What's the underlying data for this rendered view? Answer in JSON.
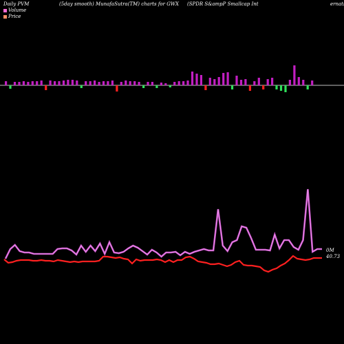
{
  "header": {
    "left": "Daily PVM",
    "center": "(5day smooth) MunafaSutra(TM) charts for GWX",
    "right": "(SPDR S&ampP Smallcap Int",
    "right_clip": "ernatio"
  },
  "legend": [
    {
      "label": "Volume",
      "color": "#ff6ad5"
    },
    {
      "label": "Price",
      "color": "#ff8c66"
    }
  ],
  "end_labels": {
    "upper": "0M",
    "lower": "40.73"
  },
  "colors": {
    "up": "#c21fc2",
    "down": "#2fe05a",
    "red": "#ff2020",
    "volume_line": "#c94fc9"
  },
  "chart_data": {
    "type": "bar",
    "bars": [
      {
        "v": 6,
        "d": "up"
      },
      {
        "v": -5,
        "d": "down"
      },
      {
        "v": 5,
        "d": "up"
      },
      {
        "v": 5,
        "d": "up"
      },
      {
        "v": 6,
        "d": "up"
      },
      {
        "v": 5,
        "d": "up"
      },
      {
        "v": 6,
        "d": "up"
      },
      {
        "v": 6,
        "d": "up"
      },
      {
        "v": 7,
        "d": "up"
      },
      {
        "v": -7,
        "d": "red"
      },
      {
        "v": 7,
        "d": "up"
      },
      {
        "v": 6,
        "d": "up"
      },
      {
        "v": 6,
        "d": "up"
      },
      {
        "v": 7,
        "d": "up"
      },
      {
        "v": 8,
        "d": "up"
      },
      {
        "v": 8,
        "d": "up"
      },
      {
        "v": 7,
        "d": "up"
      },
      {
        "v": -4,
        "d": "down"
      },
      {
        "v": 6,
        "d": "up"
      },
      {
        "v": 6,
        "d": "up"
      },
      {
        "v": 7,
        "d": "up"
      },
      {
        "v": 5,
        "d": "up"
      },
      {
        "v": 6,
        "d": "up"
      },
      {
        "v": 6,
        "d": "up"
      },
      {
        "v": 7,
        "d": "up"
      },
      {
        "v": -9,
        "d": "red"
      },
      {
        "v": 5,
        "d": "up"
      },
      {
        "v": 7,
        "d": "up"
      },
      {
        "v": 6,
        "d": "up"
      },
      {
        "v": 6,
        "d": "up"
      },
      {
        "v": 5,
        "d": "up"
      },
      {
        "v": -4,
        "d": "down"
      },
      {
        "v": 5,
        "d": "up"
      },
      {
        "v": 5,
        "d": "up"
      },
      {
        "v": -4,
        "d": "down"
      },
      {
        "v": 4,
        "d": "up"
      },
      {
        "v": 3,
        "d": "up"
      },
      {
        "v": -3,
        "d": "down"
      },
      {
        "v": 5,
        "d": "up"
      },
      {
        "v": 6,
        "d": "up"
      },
      {
        "v": 6,
        "d": "up"
      },
      {
        "v": 7,
        "d": "up"
      },
      {
        "v": 20,
        "d": "up"
      },
      {
        "v": 17,
        "d": "up"
      },
      {
        "v": 15,
        "d": "up"
      },
      {
        "v": -7,
        "d": "red"
      },
      {
        "v": 11,
        "d": "up"
      },
      {
        "v": 9,
        "d": "up"
      },
      {
        "v": 12,
        "d": "up"
      },
      {
        "v": 18,
        "d": "up"
      },
      {
        "v": 19,
        "d": "up"
      },
      {
        "v": -6,
        "d": "down"
      },
      {
        "v": 14,
        "d": "up"
      },
      {
        "v": 8,
        "d": "up"
      },
      {
        "v": 9,
        "d": "up"
      },
      {
        "v": -8,
        "d": "red"
      },
      {
        "v": 6,
        "d": "up"
      },
      {
        "v": 11,
        "d": "up"
      },
      {
        "v": -6,
        "d": "red"
      },
      {
        "v": 9,
        "d": "up"
      },
      {
        "v": 11,
        "d": "up"
      },
      {
        "v": -6,
        "d": "down"
      },
      {
        "v": -8,
        "d": "down"
      },
      {
        "v": -10,
        "d": "down"
      },
      {
        "v": 8,
        "d": "up"
      },
      {
        "v": 29,
        "d": "up"
      },
      {
        "v": 12,
        "d": "up"
      },
      {
        "v": 8,
        "d": "up"
      },
      {
        "v": -6,
        "d": "down"
      },
      {
        "v": 7,
        "d": "up"
      }
    ],
    "volume_line": [
      376,
      362,
      356,
      365,
      367,
      367,
      369,
      369,
      369,
      369,
      369,
      362,
      361,
      361,
      364,
      370,
      357,
      366,
      357,
      365,
      354,
      369,
      352,
      367,
      368,
      366,
      361,
      357,
      360,
      365,
      370,
      363,
      367,
      373,
      367,
      367,
      366,
      371,
      366,
      369,
      366,
      364,
      362,
      364,
      364,
      304,
      357,
      365,
      352,
      349,
      329,
      331,
      346,
      363,
      363,
      363,
      364,
      341,
      361,
      349,
      349,
      359,
      363,
      349,
      275,
      366,
      362,
      362
    ],
    "price_line": [
      377,
      382,
      381,
      379,
      378,
      378,
      378,
      379,
      379,
      378,
      379,
      379,
      380,
      378,
      379,
      380,
      381,
      380,
      381,
      380,
      380,
      380,
      380,
      379,
      373,
      373,
      374,
      375,
      374,
      376,
      377,
      383,
      377,
      379,
      378,
      378,
      378,
      377,
      378,
      381,
      378,
      381,
      378,
      378,
      374,
      373,
      376,
      380,
      381,
      382,
      384,
      384,
      383,
      385,
      387,
      385,
      381,
      379,
      385,
      386,
      386,
      387,
      388,
      393,
      395,
      392,
      390,
      386,
      383,
      378,
      372,
      376,
      377,
      378,
      377,
      375,
      375,
      375
    ]
  }
}
